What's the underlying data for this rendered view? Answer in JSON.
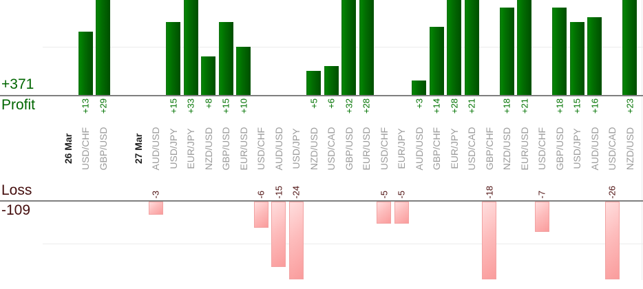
{
  "chart_data": {
    "type": "bar",
    "title": "",
    "orientation": "vertical",
    "legend_position": "none",
    "grid": "horizontal, one light gridline per pane at value 10",
    "panes": {
      "profit": {
        "label": "Profit",
        "total_label": "+371",
        "total_value": 371,
        "ylim": [
          0,
          19.7
        ],
        "note_visible_range": "bars taller than ~20 are clipped at top edge"
      },
      "loss": {
        "label": "Loss",
        "total_label": "-109",
        "total_value": -109,
        "ylim": [
          -18,
          0
        ],
        "note_visible_range": "bars deeper than -18 are clipped at bottom edge"
      }
    },
    "groups": [
      "26 Mar",
      "27 Mar"
    ],
    "columns": [
      {
        "kind": "date",
        "label": "26 Mar"
      },
      {
        "kind": "pair",
        "label": "USD/CHF",
        "value": 13,
        "text": "+13"
      },
      {
        "kind": "pair",
        "label": "GBP/USD",
        "value": 29,
        "text": "+29"
      },
      {
        "kind": "spacer",
        "label": ""
      },
      {
        "kind": "date",
        "label": "27 Mar"
      },
      {
        "kind": "pair",
        "label": "AUD/USD",
        "value": -3,
        "text": "-3"
      },
      {
        "kind": "pair",
        "label": "USD/JPY",
        "value": 15,
        "text": "+15"
      },
      {
        "kind": "pair",
        "label": "EUR/JPY",
        "value": 33,
        "text": "+33"
      },
      {
        "kind": "pair",
        "label": "NZD/USD",
        "value": 8,
        "text": "+8"
      },
      {
        "kind": "pair",
        "label": "GBP/USD",
        "value": 15,
        "text": "+15"
      },
      {
        "kind": "pair",
        "label": "EUR/USD",
        "value": 10,
        "text": "+10"
      },
      {
        "kind": "pair",
        "label": "USD/CHF",
        "value": -6,
        "text": "-6"
      },
      {
        "kind": "pair",
        "label": "AUD/USD",
        "value": -15,
        "text": "-15"
      },
      {
        "kind": "pair",
        "label": "USD/JPY",
        "value": -24,
        "text": "-24"
      },
      {
        "kind": "pair",
        "label": "NZD/USD",
        "value": 5,
        "text": "+5"
      },
      {
        "kind": "pair",
        "label": "USD/CAD",
        "value": 6,
        "text": "+6"
      },
      {
        "kind": "pair",
        "label": "GBP/USD",
        "value": 32,
        "text": "+32"
      },
      {
        "kind": "pair",
        "label": "EUR/USD",
        "value": 28,
        "text": "+28"
      },
      {
        "kind": "pair",
        "label": "USD/CHF",
        "value": -5,
        "text": "-5"
      },
      {
        "kind": "pair",
        "label": "EUR/JPY",
        "value": -5,
        "text": "-5"
      },
      {
        "kind": "pair",
        "label": "AUD/USD",
        "value": 3,
        "text": "+3"
      },
      {
        "kind": "pair",
        "label": "GBP/CHF",
        "value": 14,
        "text": "+14"
      },
      {
        "kind": "pair",
        "label": "EUR/JPY",
        "value": 28,
        "text": "+28"
      },
      {
        "kind": "pair",
        "label": "USD/CAD",
        "value": 21,
        "text": "+21"
      },
      {
        "kind": "pair",
        "label": "GBP/CHF",
        "value": -18,
        "text": "-18"
      },
      {
        "kind": "pair",
        "label": "NZD/USD",
        "value": 18,
        "text": "+18"
      },
      {
        "kind": "pair",
        "label": "EUR/USD",
        "value": 21,
        "text": "+21"
      },
      {
        "kind": "pair",
        "label": "USD/CHF",
        "value": -7,
        "text": "-7"
      },
      {
        "kind": "pair",
        "label": "GBP/USD",
        "value": 18,
        "text": "+18"
      },
      {
        "kind": "pair",
        "label": "USD/JPY",
        "value": 15,
        "text": "+15"
      },
      {
        "kind": "pair",
        "label": "AUD/USD",
        "value": 16,
        "text": "+16"
      },
      {
        "kind": "pair",
        "label": "USD/CAD",
        "value": -26,
        "text": "-26"
      },
      {
        "kind": "pair",
        "label": "NZD/USD",
        "value": 23,
        "text": "+23"
      }
    ],
    "colors": {
      "profit_bar_light": "#038303",
      "profit_bar_dark": "#004e00",
      "loss_bar_light": "#ffdede",
      "loss_bar_dark": "#fa9c9c",
      "profit_text": "#006600",
      "loss_text": "#430c0c",
      "pair_label": "#9b9b9b",
      "date_label": "#1f1f1f",
      "axis_line": "#7f7f7f",
      "gridline": "#ececec"
    }
  }
}
